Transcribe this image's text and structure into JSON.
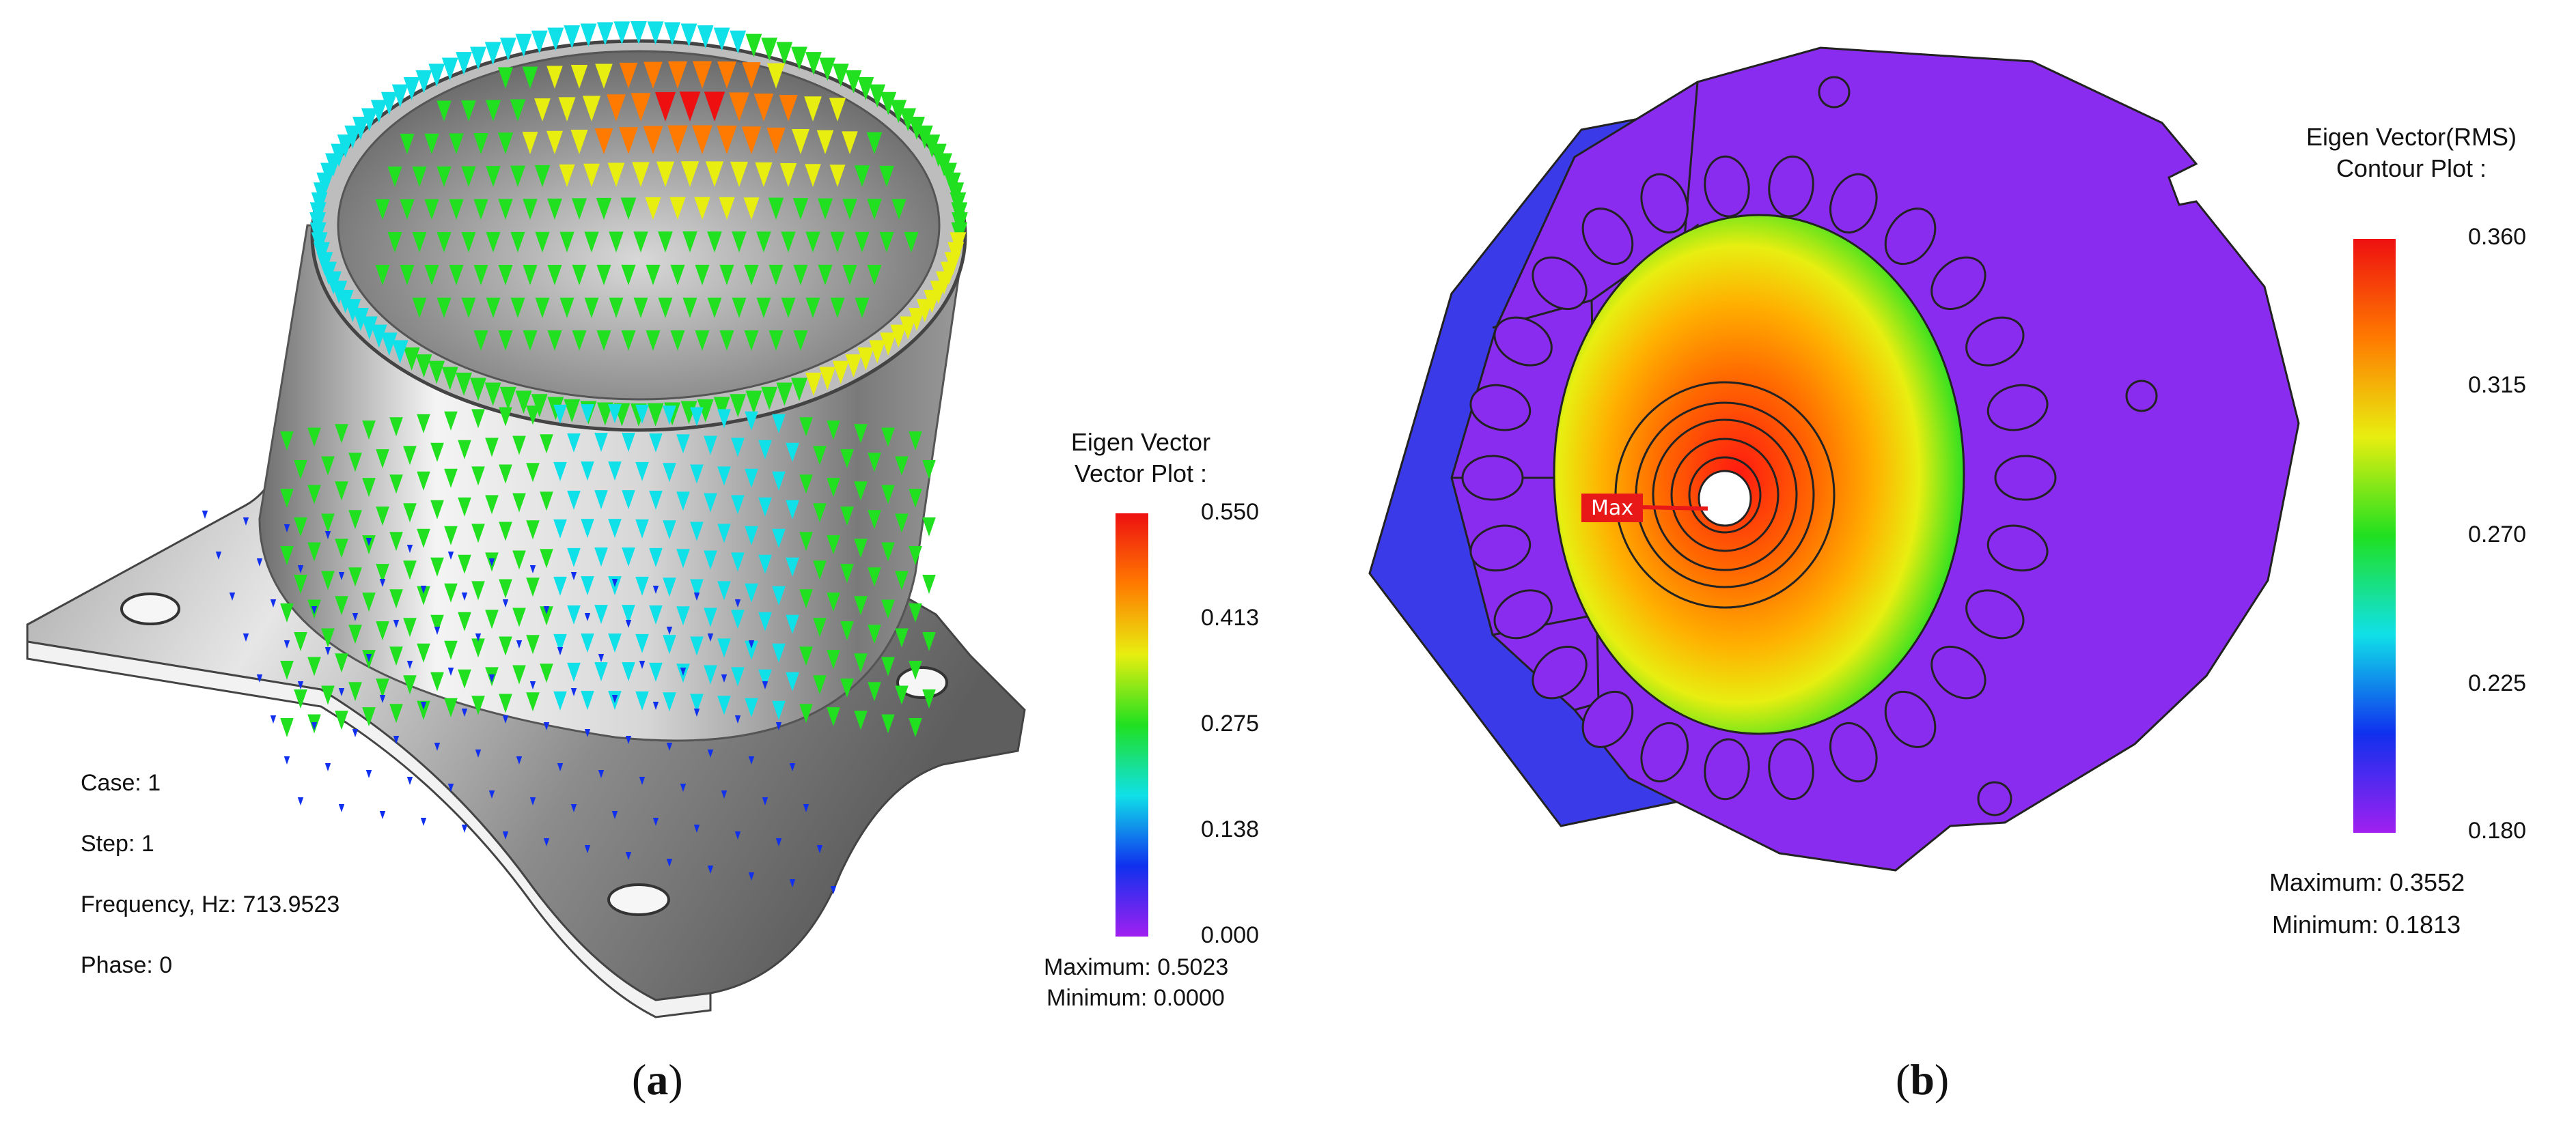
{
  "panel_a": {
    "info": {
      "case": "Case: 1",
      "step": "Step: 1",
      "frequency": "Frequency, Hz: 713.9523",
      "phase": "Phase: 0"
    },
    "legend": {
      "title_line1": "Eigen Vector",
      "title_line2": "Vector Plot :",
      "ticks": [
        "0.550",
        "0.413",
        "0.275",
        "0.138",
        "0.000"
      ],
      "maximum": "Maximum: 0.5023",
      "minimum": "Minimum: 0.0000"
    },
    "caption_letter": "a"
  },
  "panel_b": {
    "marker": "Max",
    "legend": {
      "title_line1": "Eigen Vector(RMS)",
      "title_line2": "Contour Plot :",
      "ticks": [
        "0.360",
        "0.315",
        "0.270",
        "0.225",
        "0.180"
      ],
      "maximum": "Maximum: 0.3552",
      "minimum": "Minimum: 0.1813"
    },
    "caption_letter": "b"
  },
  "colors": {
    "scale": [
      "#ee1010",
      "#ff7a00",
      "#e8ee10",
      "#20e020",
      "#10e0e8",
      "#1030ee",
      "#a020f0"
    ],
    "max_marker": "#e81818",
    "body_purple": "#8a2cf0",
    "body_blue": "#3a3ae8"
  }
}
